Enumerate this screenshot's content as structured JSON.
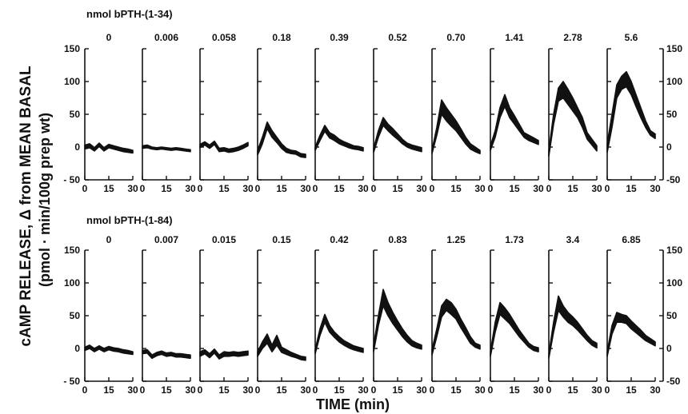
{
  "y_axis_title_line1": "cAMP RELEASE, Δ from MEAN BASAL",
  "y_axis_title_line2": "(pmol · min/100g  prep  wt)",
  "x_axis_title": "TIME (min)",
  "colors": {
    "ink": "#111111",
    "band": "#111111"
  },
  "chart_data": [
    {
      "type": "area",
      "group_label": "nmol bPTH-(1-34)",
      "ylim": [
        -50,
        150
      ],
      "yticks": [
        150,
        100,
        50,
        0,
        -50
      ],
      "ytick_labels": [
        "150",
        "100",
        "50",
        "0",
        "- 50"
      ],
      "right_ytick_labels": [
        "150",
        "100",
        "50",
        "0",
        "-50"
      ],
      "xlim": [
        0,
        30
      ],
      "xticks": [
        0,
        15,
        30
      ],
      "xtick_labels": [
        "0",
        "15",
        "30"
      ],
      "panels": [
        {
          "dose": "0",
          "x": [
            0,
            3,
            6,
            9,
            12,
            15,
            18,
            21,
            24,
            27,
            30
          ],
          "upper": [
            3,
            5,
            -1,
            6,
            -1,
            4,
            2,
            0,
            -2,
            -3,
            -5
          ],
          "lower": [
            -3,
            -1,
            -6,
            1,
            -6,
            -1,
            -3,
            -5,
            -7,
            -8,
            -9
          ]
        },
        {
          "dose": "0.006",
          "x": [
            0,
            3,
            6,
            9,
            12,
            15,
            18,
            21,
            24,
            27,
            30
          ],
          "upper": [
            2,
            3,
            0,
            -1,
            0,
            -1,
            -2,
            -1,
            -2,
            -3,
            -4
          ],
          "lower": [
            -2,
            -1,
            -3,
            -4,
            -3,
            -4,
            -5,
            -4,
            -5,
            -6,
            -7
          ]
        },
        {
          "dose": "0.058",
          "x": [
            0,
            3,
            6,
            9,
            12,
            15,
            18,
            21,
            24,
            27,
            30
          ],
          "upper": [
            4,
            8,
            3,
            9,
            -2,
            -1,
            -3,
            -2,
            0,
            3,
            7
          ],
          "lower": [
            -1,
            3,
            -2,
            4,
            -7,
            -6,
            -8,
            -7,
            -5,
            -2,
            2
          ]
        },
        {
          "dose": "0.18",
          "x": [
            0,
            3,
            6,
            9,
            12,
            15,
            18,
            21,
            24,
            27,
            30
          ],
          "upper": [
            -5,
            15,
            38,
            25,
            15,
            5,
            -2,
            -5,
            -6,
            -10,
            -11
          ],
          "lower": [
            -12,
            5,
            28,
            15,
            7,
            -2,
            -8,
            -10,
            -11,
            -15,
            -16
          ]
        },
        {
          "dose": "0.39",
          "x": [
            0,
            3,
            6,
            9,
            12,
            15,
            18,
            21,
            24,
            27,
            30
          ],
          "upper": [
            0,
            18,
            33,
            22,
            18,
            12,
            8,
            5,
            2,
            1,
            -1
          ],
          "lower": [
            -5,
            10,
            24,
            14,
            10,
            5,
            2,
            -1,
            -3,
            -4,
            -6
          ]
        },
        {
          "dose": "0.52",
          "x": [
            0,
            3,
            6,
            9,
            12,
            15,
            18,
            21,
            24,
            27,
            30
          ],
          "upper": [
            -2,
            25,
            45,
            35,
            28,
            20,
            12,
            6,
            3,
            1,
            -1
          ],
          "lower": [
            -8,
            15,
            33,
            25,
            18,
            12,
            5,
            0,
            -3,
            -5,
            -7
          ]
        },
        {
          "dose": "0.70",
          "x": [
            0,
            3,
            6,
            9,
            12,
            15,
            18,
            21,
            24,
            27,
            30
          ],
          "upper": [
            -5,
            30,
            72,
            60,
            50,
            40,
            28,
            15,
            5,
            0,
            -5
          ],
          "lower": [
            -10,
            18,
            50,
            40,
            32,
            25,
            15,
            5,
            -3,
            -7,
            -10
          ]
        },
        {
          "dose": "1.41",
          "x": [
            0,
            3,
            6,
            9,
            12,
            15,
            18,
            21,
            24,
            27,
            30
          ],
          "upper": [
            2,
            25,
            60,
            80,
            60,
            48,
            35,
            22,
            18,
            14,
            10
          ],
          "lower": [
            -5,
            15,
            45,
            62,
            45,
            35,
            25,
            15,
            10,
            7,
            4
          ]
        },
        {
          "dose": "2.78",
          "x": [
            0,
            3,
            6,
            9,
            12,
            15,
            18,
            21,
            24,
            27,
            30
          ],
          "upper": [
            -5,
            50,
            90,
            100,
            88,
            75,
            60,
            45,
            22,
            12,
            2
          ],
          "lower": [
            -14,
            35,
            70,
            75,
            65,
            55,
            45,
            30,
            12,
            3,
            -6
          ]
        },
        {
          "dose": "5.6",
          "x": [
            0,
            3,
            6,
            9,
            12,
            15,
            18,
            21,
            24,
            27,
            30
          ],
          "upper": [
            5,
            50,
            95,
            108,
            115,
            100,
            80,
            60,
            40,
            25,
            20
          ],
          "lower": [
            -8,
            30,
            75,
            88,
            92,
            80,
            62,
            45,
            30,
            18,
            13
          ]
        }
      ]
    },
    {
      "type": "area",
      "group_label": "nmol bPTH-(1-84)",
      "ylim": [
        -50,
        150
      ],
      "yticks": [
        150,
        100,
        50,
        0,
        -50
      ],
      "ytick_labels": [
        "150",
        "100",
        "50",
        "0",
        "- 50"
      ],
      "right_ytick_labels": [
        "150",
        "100",
        "50",
        "0",
        "-50"
      ],
      "xlim": [
        0,
        30
      ],
      "xticks": [
        0,
        15,
        30
      ],
      "xtick_labels": [
        "0",
        "15",
        "30"
      ],
      "panels": [
        {
          "dose": "0",
          "x": [
            0,
            3,
            6,
            9,
            12,
            15,
            18,
            21,
            24,
            27,
            30
          ],
          "upper": [
            2,
            5,
            0,
            4,
            0,
            3,
            1,
            0,
            -2,
            -3,
            -5
          ],
          "lower": [
            -3,
            0,
            -5,
            -1,
            -5,
            -2,
            -4,
            -5,
            -7,
            -8,
            -9
          ]
        },
        {
          "dose": "0.007",
          "x": [
            0,
            3,
            6,
            9,
            12,
            15,
            18,
            21,
            24,
            27,
            30
          ],
          "upper": [
            -3,
            -2,
            -10,
            -6,
            -4,
            -7,
            -6,
            -8,
            -8,
            -9,
            -10
          ],
          "lower": [
            -8,
            -7,
            -15,
            -11,
            -9,
            -12,
            -11,
            -13,
            -13,
            -14,
            -15
          ]
        },
        {
          "dose": "0.015",
          "x": [
            0,
            3,
            6,
            9,
            12,
            15,
            18,
            21,
            24,
            27,
            30
          ],
          "upper": [
            -5,
            -2,
            -8,
            -1,
            -10,
            -5,
            -6,
            -5,
            -6,
            -5,
            -4
          ],
          "lower": [
            -12,
            -8,
            -14,
            -7,
            -16,
            -12,
            -12,
            -11,
            -12,
            -11,
            -10
          ]
        },
        {
          "dose": "0.15",
          "x": [
            0,
            3,
            6,
            9,
            12,
            15,
            18,
            21,
            24,
            27,
            30
          ],
          "upper": [
            -5,
            10,
            22,
            5,
            20,
            2,
            -2,
            -6,
            -9,
            -12,
            -13
          ],
          "lower": [
            -12,
            0,
            8,
            -5,
            5,
            -6,
            -9,
            -12,
            -14,
            -17,
            -18
          ]
        },
        {
          "dose": "0.42",
          "x": [
            0,
            3,
            6,
            9,
            12,
            15,
            18,
            21,
            24,
            27,
            30
          ],
          "upper": [
            -2,
            30,
            52,
            35,
            25,
            18,
            12,
            8,
            4,
            2,
            0
          ],
          "lower": [
            -8,
            20,
            40,
            25,
            17,
            10,
            5,
            1,
            -2,
            -4,
            -6
          ]
        },
        {
          "dose": "0.83",
          "x": [
            0,
            3,
            6,
            9,
            12,
            15,
            18,
            21,
            24,
            27,
            30
          ],
          "upper": [
            5,
            50,
            90,
            70,
            55,
            42,
            30,
            20,
            12,
            8,
            5
          ],
          "lower": [
            -5,
            35,
            65,
            50,
            38,
            28,
            18,
            10,
            4,
            1,
            -1
          ]
        },
        {
          "dose": "1.25",
          "x": [
            0,
            3,
            6,
            9,
            12,
            15,
            18,
            21,
            24,
            27,
            30
          ],
          "upper": [
            -2,
            30,
            65,
            75,
            70,
            60,
            45,
            32,
            18,
            8,
            5
          ],
          "lower": [
            -10,
            18,
            48,
            58,
            52,
            45,
            32,
            20,
            8,
            2,
            -1
          ]
        },
        {
          "dose": "1.73",
          "x": [
            0,
            3,
            6,
            9,
            12,
            15,
            18,
            21,
            24,
            27,
            30
          ],
          "upper": [
            -5,
            40,
            70,
            62,
            52,
            40,
            28,
            18,
            8,
            3,
            1
          ],
          "lower": [
            -12,
            25,
            52,
            45,
            38,
            28,
            18,
            10,
            2,
            -3,
            -5
          ]
        },
        {
          "dose": "3.4",
          "x": [
            0,
            3,
            6,
            9,
            12,
            15,
            18,
            21,
            24,
            27,
            30
          ],
          "upper": [
            -8,
            40,
            80,
            65,
            55,
            48,
            40,
            30,
            20,
            12,
            8
          ],
          "lower": [
            -15,
            25,
            58,
            48,
            40,
            35,
            28,
            20,
            12,
            5,
            1
          ]
        },
        {
          "dose": "6.85",
          "x": [
            0,
            3,
            6,
            9,
            12,
            15,
            18,
            21,
            24,
            27,
            30
          ],
          "upper": [
            -5,
            35,
            55,
            52,
            50,
            42,
            35,
            28,
            20,
            15,
            10
          ],
          "lower": [
            -12,
            22,
            40,
            40,
            38,
            30,
            24,
            18,
            12,
            8,
            4
          ]
        }
      ]
    }
  ]
}
